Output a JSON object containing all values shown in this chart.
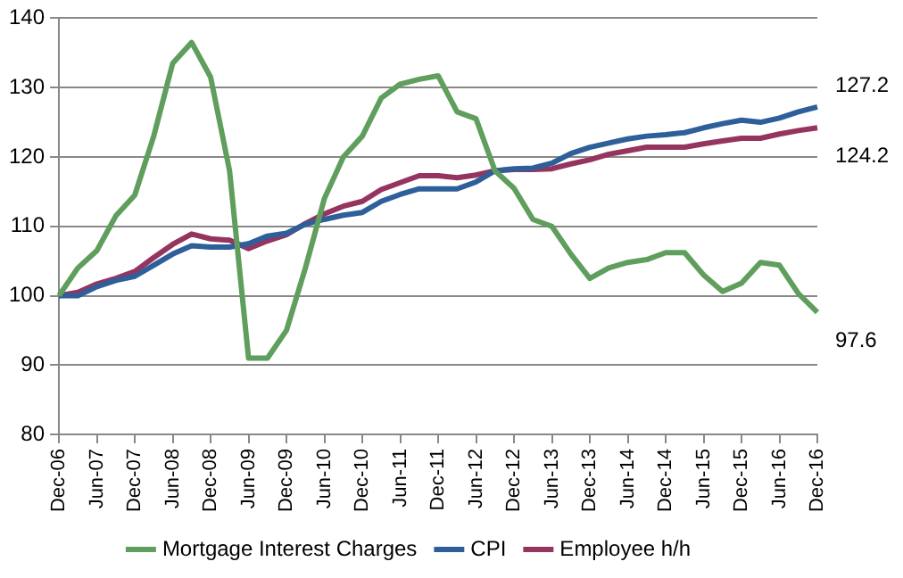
{
  "chart_data": {
    "type": "line",
    "categories": [
      "Dec-06",
      null,
      "Jun-07",
      null,
      "Dec-07",
      null,
      "Jun-08",
      null,
      "Dec-08",
      null,
      "Jun-09",
      null,
      "Dec-09",
      null,
      "Jun-10",
      null,
      "Dec-10",
      null,
      "Jun-11",
      null,
      "Dec-11",
      null,
      "Jun-12",
      null,
      "Dec-12",
      null,
      "Jun-13",
      null,
      "Dec-13",
      null,
      "Jun-14",
      null,
      "Dec-14",
      null,
      "Jun-15",
      null,
      "Dec-15",
      null,
      "Jun-16",
      null,
      "Dec-16"
    ],
    "series": [
      {
        "name": "Mortgage Interest Charges",
        "color": "#5f9e5c",
        "values": [
          100,
          104,
          106.5,
          111.5,
          114.5,
          123,
          133.5,
          136.5,
          131.5,
          118,
          91,
          91,
          95,
          104,
          114,
          120,
          123,
          128.5,
          130.5,
          131.2,
          131.7,
          126.5,
          125.5,
          118,
          115.5,
          111,
          110,
          106,
          102.5,
          104,
          104.8,
          105.2,
          106.2,
          106.2,
          103,
          100.6,
          101.8,
          104.8,
          104.4,
          100.3,
          97.6
        ]
      },
      {
        "name": "CPI",
        "color": "#2e5f9a",
        "values": [
          100,
          100,
          101.3,
          102.2,
          102.8,
          104.4,
          106,
          107.2,
          107,
          107,
          107.5,
          108.6,
          109,
          110.3,
          111,
          111.6,
          112,
          113.6,
          114.6,
          115.4,
          115.4,
          115.4,
          116.4,
          118,
          118.3,
          118.4,
          119.1,
          120.5,
          121.4,
          122,
          122.6,
          123,
          123.2,
          123.5,
          124.2,
          124.8,
          125.3,
          125,
          125.6,
          126.5,
          127.2
        ]
      },
      {
        "name": "Employee h/h",
        "color": "#963460",
        "values": [
          100,
          100.5,
          101.7,
          102.5,
          103.5,
          105.5,
          107.4,
          108.9,
          108.2,
          108,
          106.8,
          107.9,
          108.8,
          110.4,
          111.8,
          112.9,
          113.6,
          115.3,
          116.3,
          117.3,
          117.3,
          117,
          117.4,
          118,
          118.2,
          118.2,
          118.3,
          119,
          119.6,
          120.4,
          120.9,
          121.4,
          121.4,
          121.4,
          121.9,
          122.3,
          122.7,
          122.7,
          123.3,
          123.8,
          124.2
        ]
      }
    ],
    "ylim": [
      80,
      140
    ],
    "yticks": [
      80,
      90,
      100,
      110,
      120,
      130,
      140
    ],
    "grid": "y",
    "legend": "bottom",
    "marker": "none",
    "line_style": "solid",
    "annotations": [
      {
        "text": "127.2",
        "x": "Dec-16",
        "y": 127.2
      },
      {
        "text": "124.2",
        "x": "Dec-16",
        "y": 124.2
      },
      {
        "text": "97.6",
        "x": "Dec-16",
        "y": 97.6
      }
    ]
  }
}
